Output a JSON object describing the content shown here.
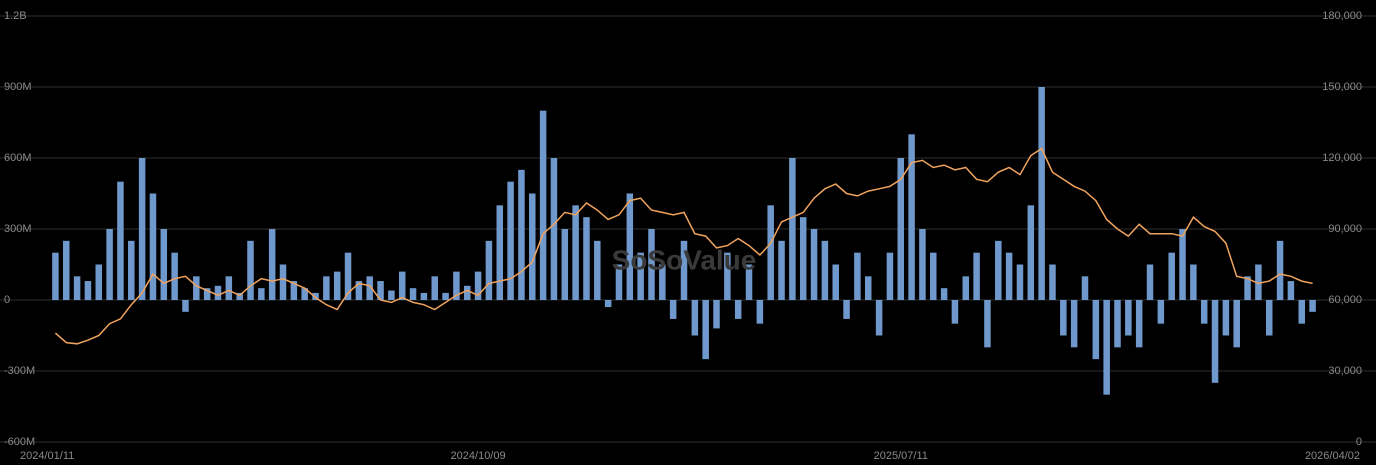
{
  "chart_data": {
    "type": "bar_line",
    "watermark": "SoSoValue",
    "categories": [
      "2024/01/11",
      null,
      null,
      null,
      null,
      null,
      null,
      null,
      null,
      null,
      null,
      null,
      null,
      null,
      null,
      null,
      null,
      null,
      null,
      null,
      null,
      null,
      null,
      null,
      null,
      null,
      null,
      null,
      null,
      null,
      null,
      null,
      null,
      null,
      null,
      null,
      null,
      null,
      null,
      "2024/10/09",
      null,
      null,
      null,
      null,
      null,
      null,
      null,
      null,
      null,
      null,
      null,
      null,
      null,
      null,
      null,
      null,
      null,
      null,
      null,
      null,
      null,
      null,
      null,
      null,
      null,
      null,
      null,
      null,
      null,
      null,
      null,
      null,
      null,
      null,
      null,
      null,
      null,
      null,
      "2025/07/11",
      null,
      null,
      null,
      null,
      null,
      null,
      null,
      null,
      null,
      null,
      null,
      null,
      null,
      null,
      null,
      null,
      null,
      null,
      null,
      null,
      null,
      null,
      null,
      null,
      null,
      null,
      null,
      null,
      null,
      null,
      null,
      null,
      null,
      null,
      null,
      null,
      null,
      "2026/04/02"
    ],
    "series": [
      {
        "color": "#6f98cc",
        "values": [
          200000000,
          250000000,
          100000000,
          80000000,
          150000000,
          300000000,
          500000000,
          250000000,
          600000000,
          450000000,
          300000000,
          200000000,
          -50000000,
          100000000,
          50000000,
          60000000,
          100000000,
          30000000,
          250000000,
          50000000,
          300000000,
          150000000,
          80000000,
          50000000,
          30000000,
          100000000,
          120000000,
          200000000,
          80000000,
          100000000,
          80000000,
          40000000,
          120000000,
          50000000,
          30000000,
          100000000,
          30000000,
          120000000,
          60000000,
          120000000,
          250000000,
          400000000,
          500000000,
          550000000,
          450000000,
          800000000,
          600000000,
          300000000,
          400000000,
          350000000,
          250000000,
          -30000000,
          150000000,
          450000000,
          200000000,
          300000000,
          150000000,
          -80000000,
          250000000,
          -150000000,
          -250000000,
          -120000000,
          200000000,
          -80000000,
          150000000,
          -100000000,
          400000000,
          250000000,
          600000000,
          350000000,
          300000000,
          250000000,
          150000000,
          -80000000,
          200000000,
          100000000,
          -150000000,
          200000000,
          600000000,
          700000000,
          300000000,
          200000000,
          50000000,
          -100000000,
          100000000,
          200000000,
          -200000000,
          250000000,
          200000000,
          150000000,
          400000000,
          900000000,
          150000000,
          -150000000,
          -200000000,
          100000000,
          -250000000,
          -400000000,
          -200000000,
          -150000000,
          -200000000,
          150000000,
          -100000000,
          200000000,
          300000000,
          150000000,
          -100000000,
          -350000000,
          -150000000,
          -200000000,
          100000000,
          150000000,
          -150000000,
          250000000,
          80000000,
          -100000000,
          -50000000
        ]
      },
      {
        "color": "#f0a35e",
        "axis": "y2",
        "values": [
          46000,
          42000,
          41500,
          43000,
          45000,
          50000,
          52000,
          58000,
          63000,
          71000,
          67000,
          69000,
          70000,
          66000,
          64000,
          62000,
          64000,
          62000,
          66000,
          69000,
          68000,
          69000,
          67000,
          65000,
          61000,
          58000,
          56000,
          63000,
          67000,
          66000,
          60000,
          59000,
          61000,
          59000,
          58000,
          56000,
          59000,
          62000,
          64000,
          62000,
          67000,
          68000,
          69000,
          72000,
          76000,
          88000,
          92000,
          97000,
          96000,
          101000,
          98000,
          94000,
          96000,
          102000,
          103000,
          98000,
          97000,
          96000,
          97000,
          88000,
          87000,
          82000,
          83000,
          86000,
          83000,
          79000,
          84000,
          93000,
          95000,
          97000,
          103000,
          107000,
          109000,
          105000,
          104000,
          106000,
          107000,
          108000,
          111000,
          118000,
          119000,
          116000,
          117000,
          115000,
          116000,
          111000,
          110000,
          114000,
          116000,
          113000,
          121000,
          124000,
          114000,
          111000,
          108000,
          106000,
          102000,
          94000,
          90000,
          87000,
          92000,
          88000,
          88000,
          88000,
          87000,
          95000,
          91000,
          89000,
          84000,
          70000,
          69000,
          67000,
          68000,
          71000,
          70000,
          68000,
          67000
        ]
      }
    ],
    "ylim": [
      -600000000,
      1200000000
    ],
    "yticks": [
      {
        "value": -600000000,
        "label": "-600M"
      },
      {
        "value": -300000000,
        "label": "-300M"
      },
      0,
      {
        "value": 300000000,
        "label": "300M"
      },
      {
        "value": 600000000,
        "label": "600M"
      },
      {
        "value": 900000000,
        "label": "900M"
      },
      {
        "value": 1200000000,
        "label": "1.2B"
      }
    ],
    "y2lim": [
      0,
      180000
    ],
    "y2ticks": [
      0,
      {
        "value": 30000,
        "label": "30,000"
      },
      {
        "value": 60000,
        "label": "60,000"
      },
      {
        "value": 90000,
        "label": "90,000"
      },
      {
        "value": 120000,
        "label": "120,000"
      },
      {
        "value": 150000,
        "label": "150,000"
      },
      {
        "value": 180000,
        "label": "180,000"
      }
    ],
    "grid": true
  }
}
